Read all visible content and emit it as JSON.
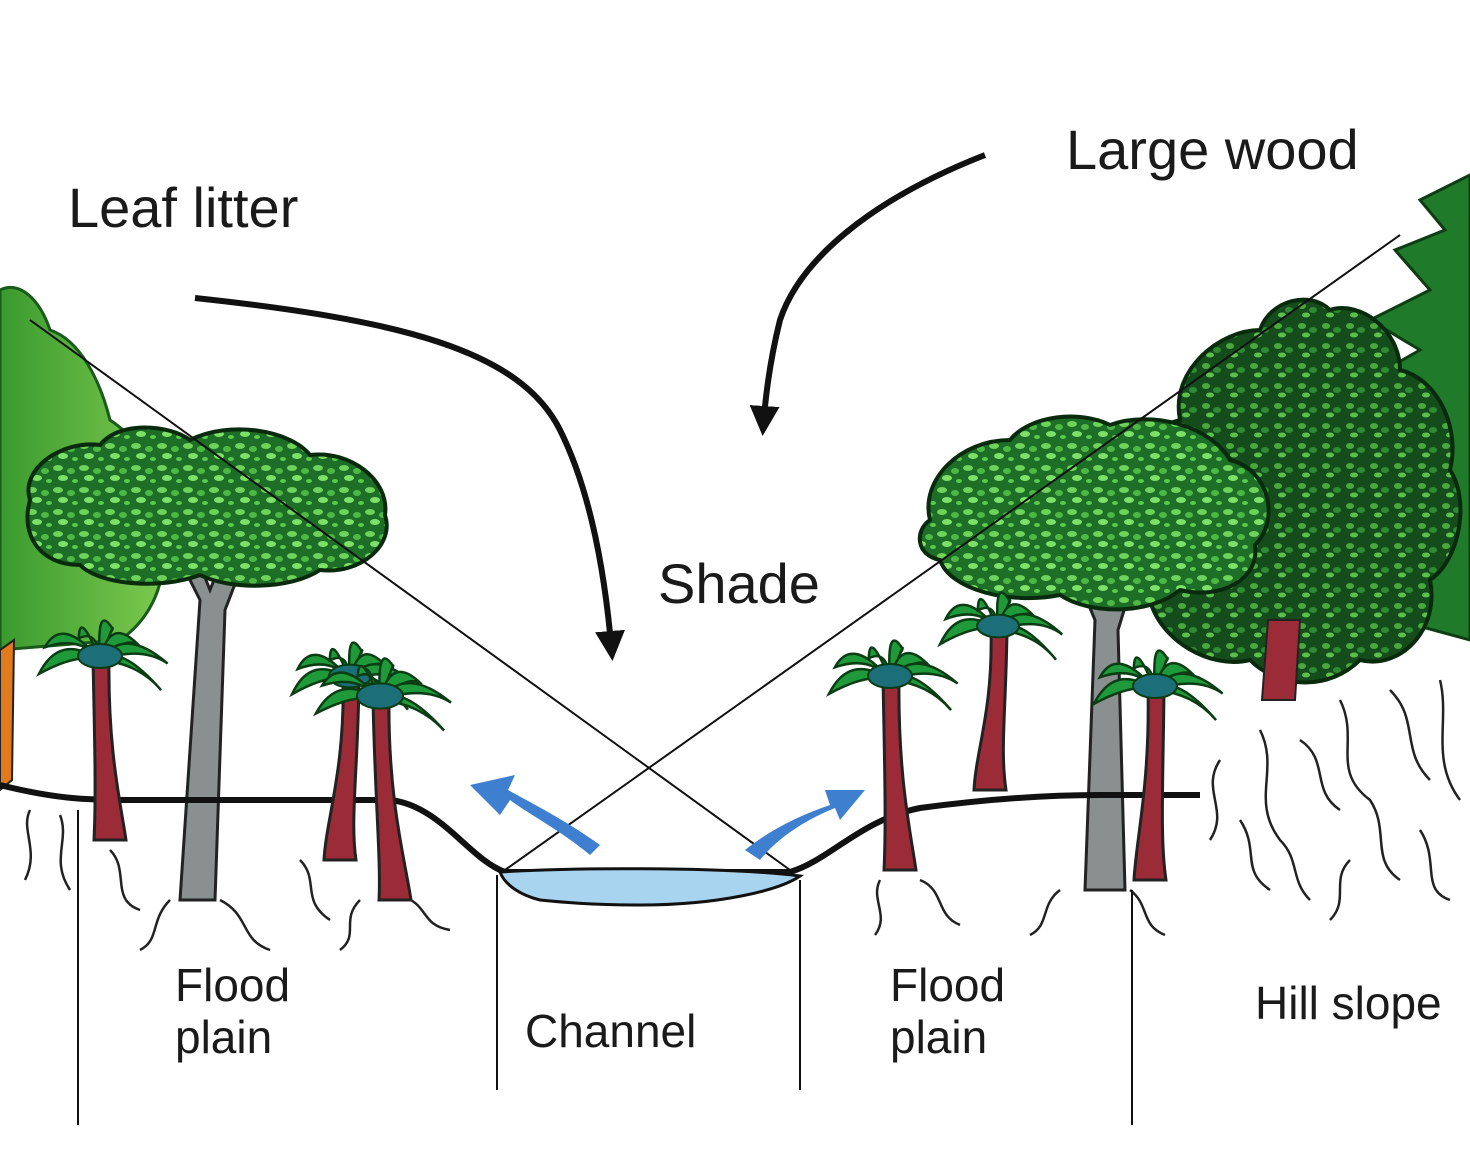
{
  "labels": {
    "leaf_litter": "Leaf litter",
    "large_wood": "Large wood",
    "shade": "Shade",
    "flood_plain_left": [
      "Flood",
      "plain"
    ],
    "channel": "Channel",
    "flood_plain_right": [
      "Flood",
      "plain"
    ],
    "hill_slope": "Hill slope"
  },
  "colors": {
    "palm_frond": "#1f9a3a",
    "palm_frond_center": "#1c6e78",
    "palm_trunk": "#9b2b36",
    "broadleaf_canopy": "#1e7f2c",
    "broadleaf_speckle": "#6fd25a",
    "light_tree": "#5cb83c",
    "grey_trunk": "#8a8f8f",
    "water": "#a9d4ef",
    "flow_arrow": "#3f7fd0",
    "line": "#111111"
  },
  "icons": [
    "curved-arrow-icon",
    "flow-arrow-icon",
    "palm-tree-icon",
    "broadleaf-tree-icon",
    "conifer-tree-icon",
    "root-icon"
  ]
}
